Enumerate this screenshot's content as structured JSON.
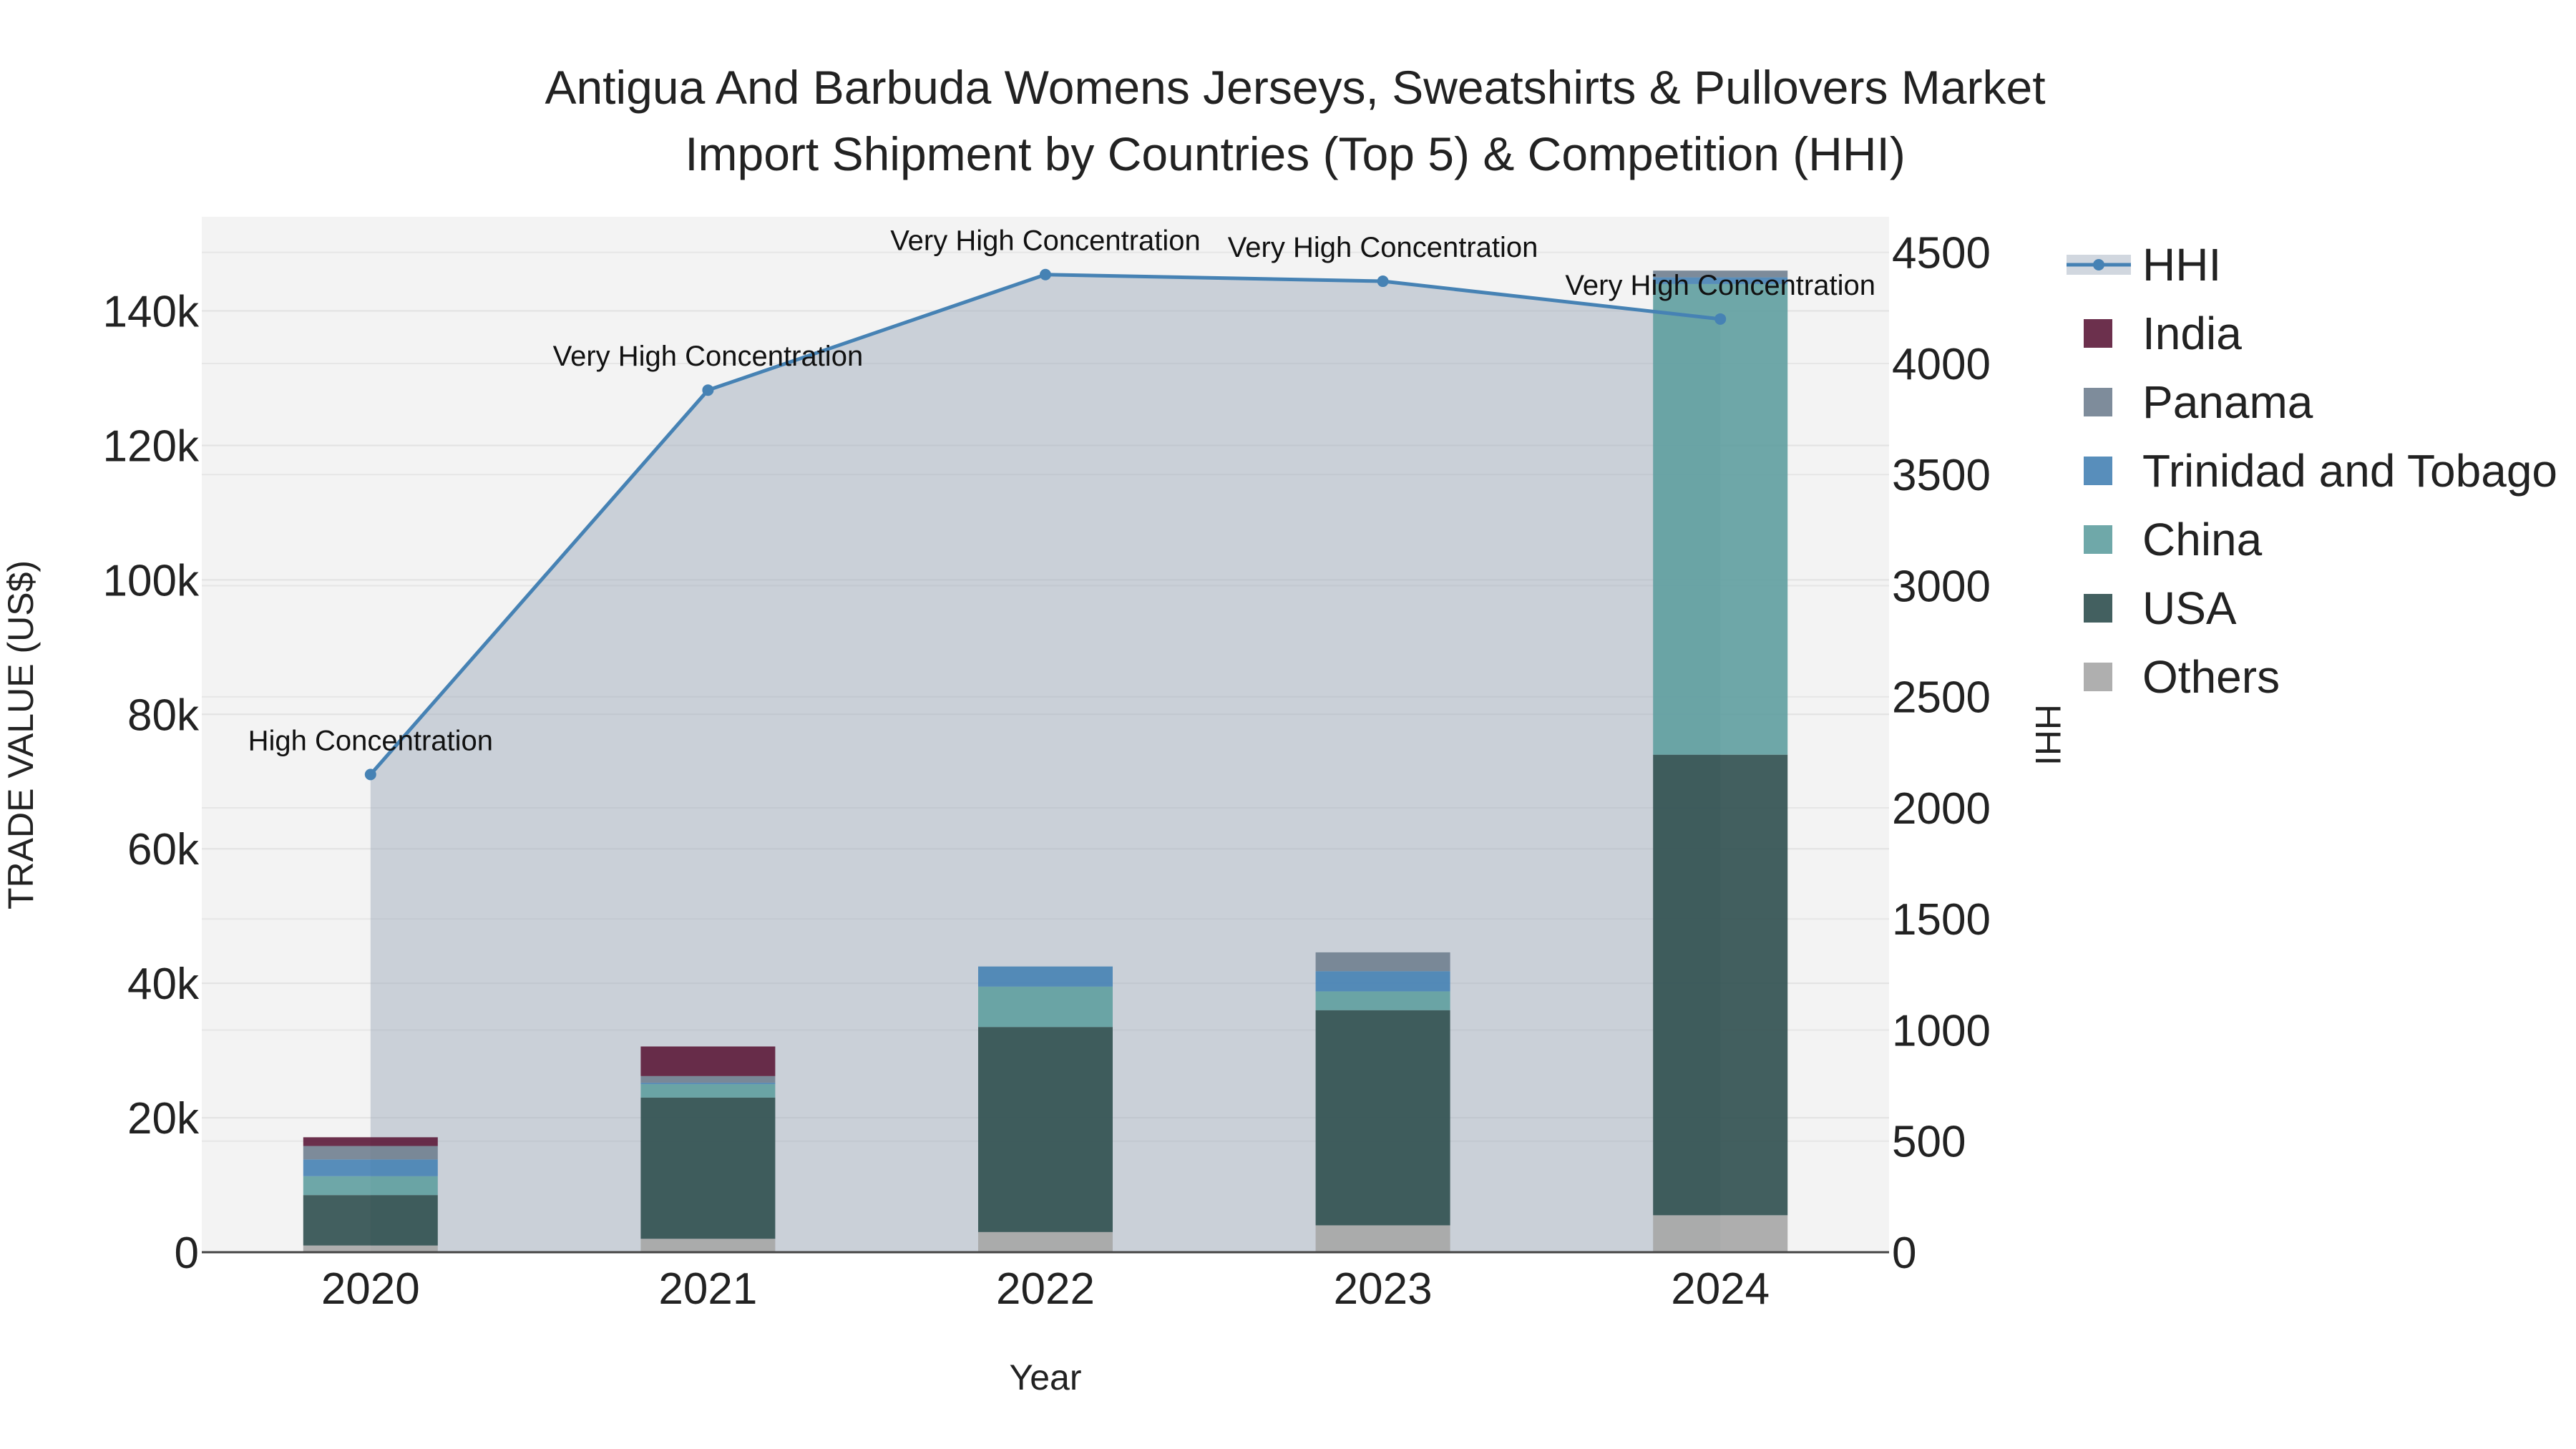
{
  "chart_data": {
    "type": "bar",
    "title_line1": "Antigua And Barbuda Womens Jerseys, Sweatshirts & Pullovers Market",
    "title_line2": "Import Shipment by Countries (Top 5) & Competition (HHI)",
    "xlabel": "Year",
    "ylabel": "TRADE VALUE (US$)",
    "y2label": "HHI",
    "categories": [
      "2020",
      "2021",
      "2022",
      "2023",
      "2024"
    ],
    "ylim": [
      0,
      154000
    ],
    "y2lim": [
      0,
      4660
    ],
    "y_ticks": [
      0,
      20000,
      40000,
      60000,
      80000,
      100000,
      120000,
      140000
    ],
    "y_tick_labels": [
      "0",
      "20k",
      "40k",
      "60k",
      "80k",
      "100k",
      "120k",
      "140k"
    ],
    "y2_ticks": [
      0,
      500,
      1000,
      1500,
      2000,
      2500,
      3000,
      3500,
      4000,
      4500
    ],
    "y2_tick_labels": [
      "0",
      "500",
      "1000",
      "1500",
      "2000",
      "2500",
      "3000",
      "3500",
      "4000",
      "4500"
    ],
    "stack_order": [
      "Others",
      "USA",
      "China",
      "Trinidad and Tobago",
      "Panama",
      "India"
    ],
    "series": [
      {
        "name": "Others",
        "color": "#a6a6a6",
        "values": [
          1000,
          2000,
          3000,
          4000,
          5500
        ]
      },
      {
        "name": "USA",
        "color": "#2f4f4f",
        "values": [
          7500,
          21000,
          30500,
          32000,
          68500
        ]
      },
      {
        "name": "China",
        "color": "#5f9ea0",
        "values": [
          2800,
          2000,
          6000,
          2800,
          70000
        ]
      },
      {
        "name": "Trinidad and Tobago",
        "color": "#4682b4",
        "values": [
          2500,
          200,
          3000,
          3000,
          1000
        ]
      },
      {
        "name": "Panama",
        "color": "#708090",
        "values": [
          2000,
          1000,
          0,
          2800,
          1000
        ]
      },
      {
        "name": "India",
        "color": "#5c1a3a",
        "values": [
          1300,
          4400,
          0,
          0,
          0
        ]
      }
    ],
    "hhi": {
      "name": "HHI",
      "color": "#4682b4",
      "values": [
        2150,
        3880,
        4400,
        4370,
        4200
      ],
      "labels": [
        "High Concentration",
        "Very High Concentration",
        "Very High Concentration",
        "Very High Concentration",
        "Very High Concentration"
      ]
    },
    "legend": [
      "HHI",
      "India",
      "Panama",
      "Trinidad and Tobago",
      "China",
      "USA",
      "Others"
    ]
  }
}
